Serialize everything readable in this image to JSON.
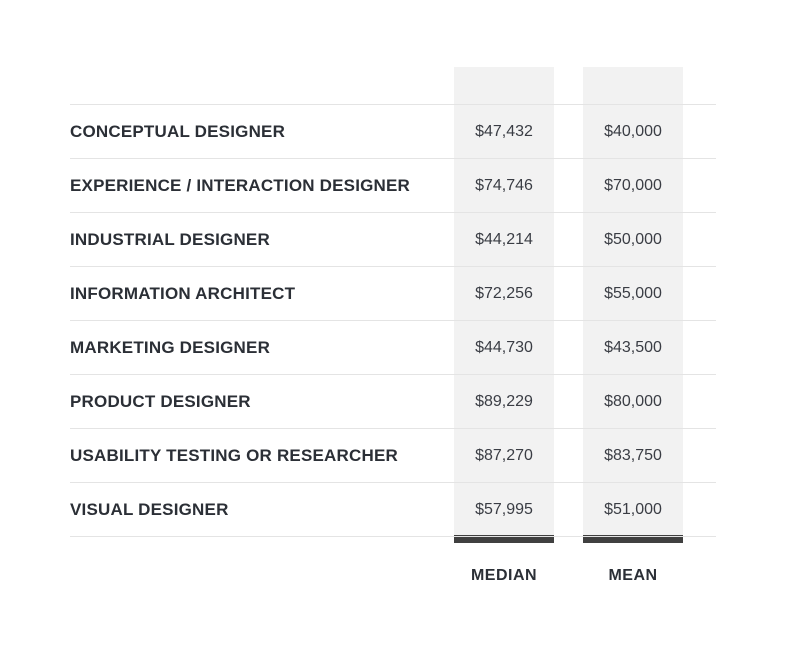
{
  "chart_data": {
    "type": "table",
    "columns": [
      "MEDIAN",
      "MEAN"
    ],
    "rows": [
      {
        "role": "CONCEPTUAL DESIGNER",
        "median_label": "$47,432",
        "mean_label": "$40,000",
        "median": 47432,
        "mean": 40000
      },
      {
        "role": "EXPERIENCE / INTERACTION DESIGNER",
        "median_label": "$74,746",
        "mean_label": "$70,000",
        "median": 74746,
        "mean": 70000
      },
      {
        "role": "INDUSTRIAL DESIGNER",
        "median_label": "$44,214",
        "mean_label": "$50,000",
        "median": 44214,
        "mean": 50000
      },
      {
        "role": "INFORMATION ARCHITECT",
        "median_label": "$72,256",
        "mean_label": "$55,000",
        "median": 72256,
        "mean": 55000
      },
      {
        "role": "MARKETING DESIGNER",
        "median_label": "$44,730",
        "mean_label": "$43,500",
        "median": 44730,
        "mean": 43500
      },
      {
        "role": "PRODUCT DESIGNER",
        "median_label": "$89,229",
        "mean_label": "$80,000",
        "median": 89229,
        "mean": 80000
      },
      {
        "role": "USABILITY TESTING OR RESEARCHER",
        "median_label": "$87,270",
        "mean_label": "$83,750",
        "median": 87270,
        "mean": 83750
      },
      {
        "role": "VISUAL DESIGNER",
        "median_label": "$57,995",
        "mean_label": "$51,000",
        "median": 57995,
        "mean": 51000
      }
    ]
  },
  "colors": {
    "column_highlight": "#f2f2f2",
    "column_bar": "#404040",
    "divider": "#e4e4e4",
    "text": "#2b2f36"
  }
}
